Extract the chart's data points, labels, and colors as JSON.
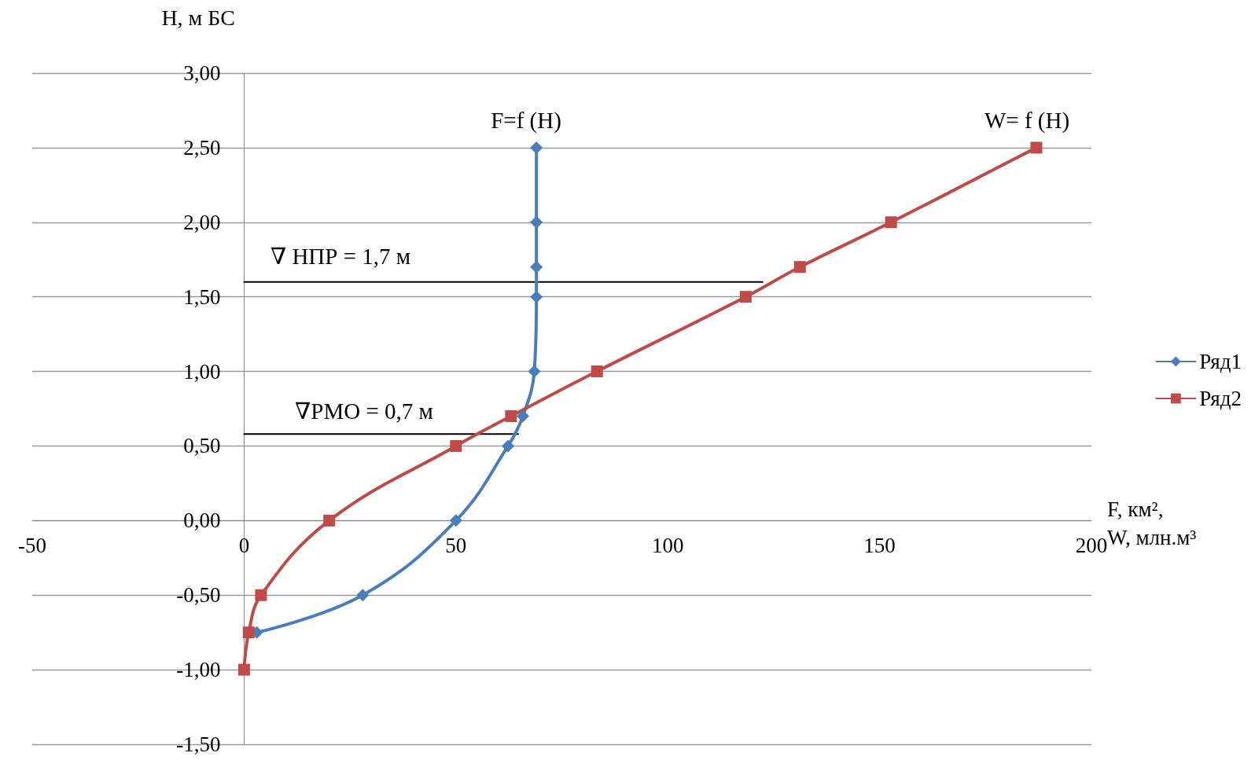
{
  "chart_data": {
    "type": "line",
    "xlabel": "F, км²,\nW, млн.м³",
    "ylabel": "H, м БС",
    "xlim": [
      -50,
      200
    ],
    "xticks": [
      -50,
      0,
      50,
      100,
      150,
      200
    ],
    "ylim": [
      -1.5,
      3
    ],
    "yticks": [
      {
        "value": -1.5,
        "label": "-1,50"
      },
      {
        "value": -1,
        "label": "-1,00"
      },
      {
        "value": -0.5,
        "label": "-0,50"
      },
      {
        "value": 0,
        "label": "0,00"
      },
      {
        "value": 0.5,
        "label": "0,50"
      },
      {
        "value": 1,
        "label": "1,00"
      },
      {
        "value": 1.5,
        "label": "1,50"
      },
      {
        "value": 2,
        "label": "2,00"
      },
      {
        "value": 2.5,
        "label": "2,50"
      },
      {
        "value": 3,
        "label": "3,00"
      }
    ],
    "grid": "y",
    "legend": "right",
    "series": [
      {
        "name": "Ряд1",
        "color": "#4a7ebb",
        "marker": "diamond",
        "x": [
          69,
          69,
          69,
          69,
          68.5,
          65.8,
          62.3,
          50,
          28,
          3
        ],
        "values": [
          2.5,
          2,
          1.7,
          1.5,
          1,
          0.7,
          0.5,
          0,
          -0.5,
          -0.75
        ]
      },
      {
        "name": "Ряд2",
        "color": "#be4b48",
        "marker": "square",
        "x": [
          187,
          152.7,
          131.2,
          118.4,
          83.3,
          63,
          50,
          20.1,
          4,
          1.1,
          0
        ],
        "values": [
          2.5,
          2,
          1.7,
          1.5,
          1,
          0.7,
          0.5,
          0,
          -0.5,
          -0.75,
          -1
        ]
      },
      {
        "color": "#000000",
        "marker": "none",
        "x": [
          0,
          122.4
        ],
        "values": [
          1.6,
          1.6
        ]
      },
      {
        "color": "#000000",
        "marker": "none",
        "x": [
          0,
          64.7
        ],
        "values": [
          0.58,
          0.58
        ]
      }
    ],
    "annotations": [
      "F=f (H)",
      "W= f (H)",
      "∇ НПР = 1,7 м",
      "∇РМО = 0,7 м"
    ]
  }
}
